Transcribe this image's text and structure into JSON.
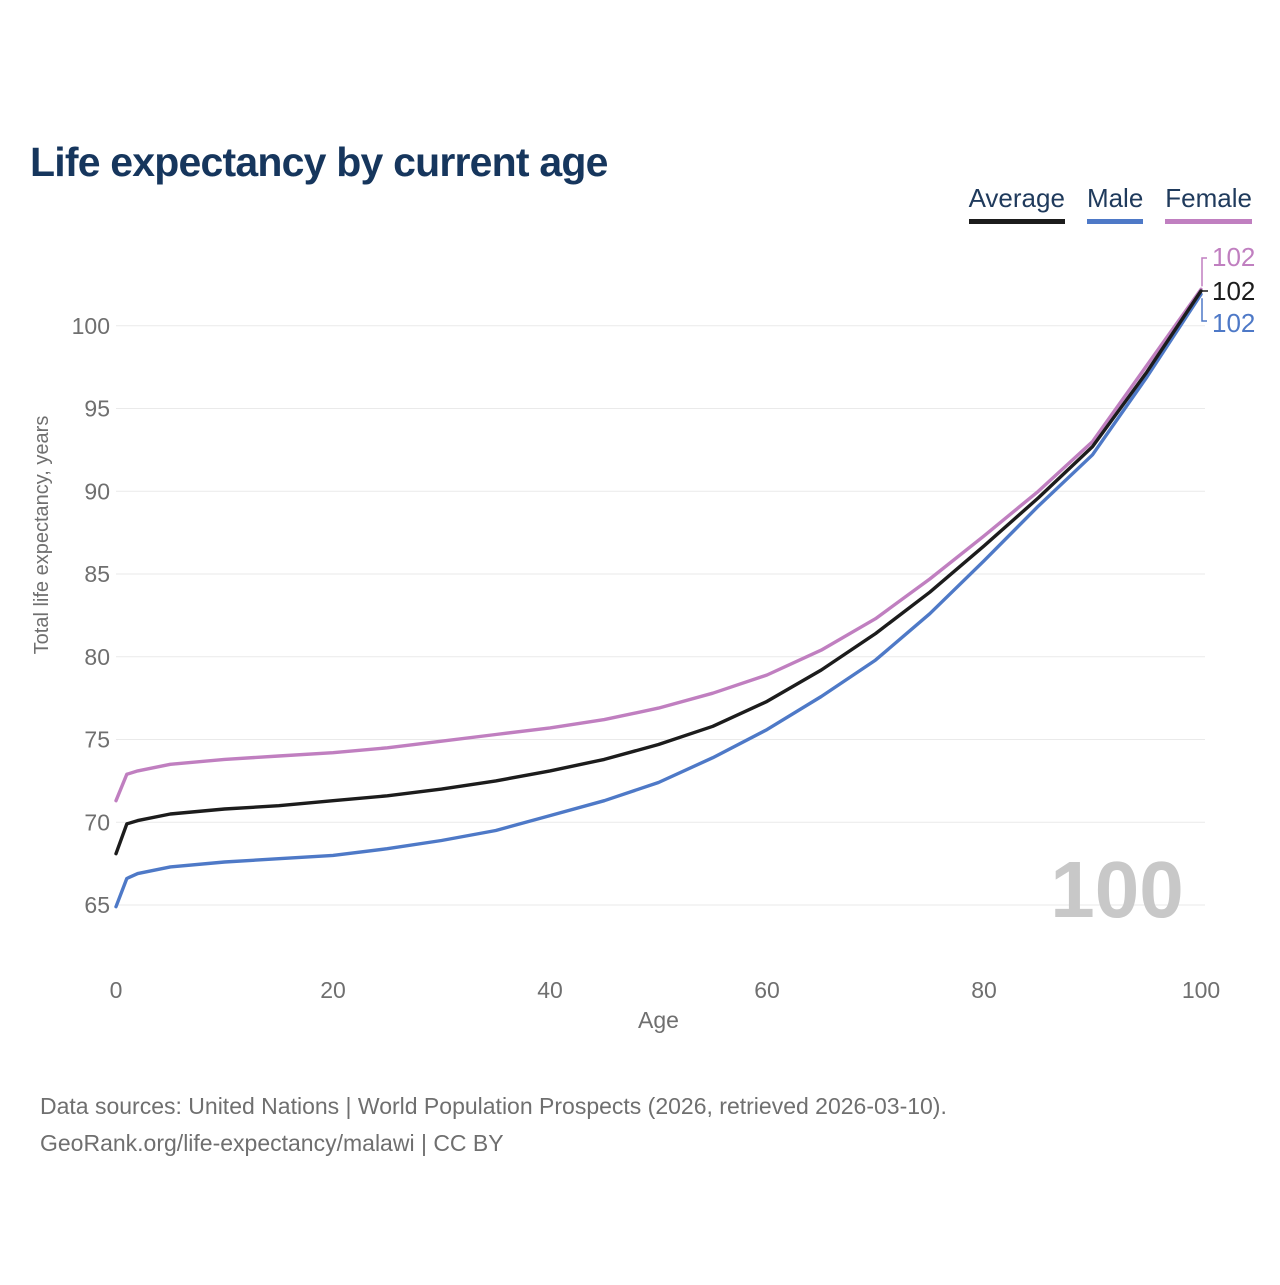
{
  "header": {
    "title": "Life expectancy by current age"
  },
  "legend": {
    "items": [
      {
        "label": "Average",
        "color": "#1c1c1c"
      },
      {
        "label": "Male",
        "color": "#4e79c7"
      },
      {
        "label": "Female",
        "color": "#c07fc0"
      }
    ]
  },
  "chart_data": {
    "type": "line",
    "title": "Life expectancy by current age",
    "xlabel": "Age",
    "ylabel": "Total life expectancy, years",
    "x_ticks": [
      0,
      20,
      40,
      60,
      80,
      100
    ],
    "y_ticks": [
      65,
      70,
      75,
      80,
      85,
      90,
      95,
      100
    ],
    "xlim": [
      0,
      100
    ],
    "ylim": [
      61.5,
      104
    ],
    "grid": "horizontal",
    "legend_position": "top-right",
    "watermark": "100",
    "x": [
      0,
      1,
      2,
      5,
      10,
      15,
      20,
      25,
      30,
      35,
      40,
      45,
      50,
      55,
      60,
      65,
      70,
      75,
      80,
      85,
      90,
      95,
      100
    ],
    "series": [
      {
        "name": "Male",
        "color": "#4e79c7",
        "end_label": "102",
        "values": [
          64.9,
          66.6,
          66.9,
          67.3,
          67.6,
          67.8,
          68.0,
          68.4,
          68.9,
          69.5,
          70.4,
          71.3,
          72.4,
          73.9,
          75.6,
          77.6,
          79.8,
          82.6,
          85.8,
          89.1,
          92.2,
          96.9,
          101.9
        ]
      },
      {
        "name": "Female",
        "color": "#c07fc0",
        "end_label": "102",
        "values": [
          71.3,
          72.9,
          73.1,
          73.5,
          73.8,
          74.0,
          74.2,
          74.5,
          74.9,
          75.3,
          75.7,
          76.2,
          76.9,
          77.8,
          78.9,
          80.4,
          82.3,
          84.7,
          87.3,
          90.0,
          93.0,
          97.6,
          102.2
        ]
      },
      {
        "name": "Average",
        "color": "#1c1c1c",
        "end_label": "102",
        "values": [
          68.1,
          69.9,
          70.1,
          70.5,
          70.8,
          71.0,
          71.3,
          71.6,
          72.0,
          72.5,
          73.1,
          73.8,
          74.7,
          75.8,
          77.3,
          79.2,
          81.4,
          83.9,
          86.7,
          89.6,
          92.7,
          97.2,
          102.1
        ]
      }
    ],
    "axis_text_color": "#6f6f6f",
    "grid_color": "#eaeaea",
    "watermark_color": "#c8c8c8"
  },
  "footer": {
    "line1": "Data sources: United Nations | World Population Prospects (2026, retrieved 2026-03-10).",
    "line2": "GeoRank.org/life-expectancy/malawi | CC BY"
  }
}
